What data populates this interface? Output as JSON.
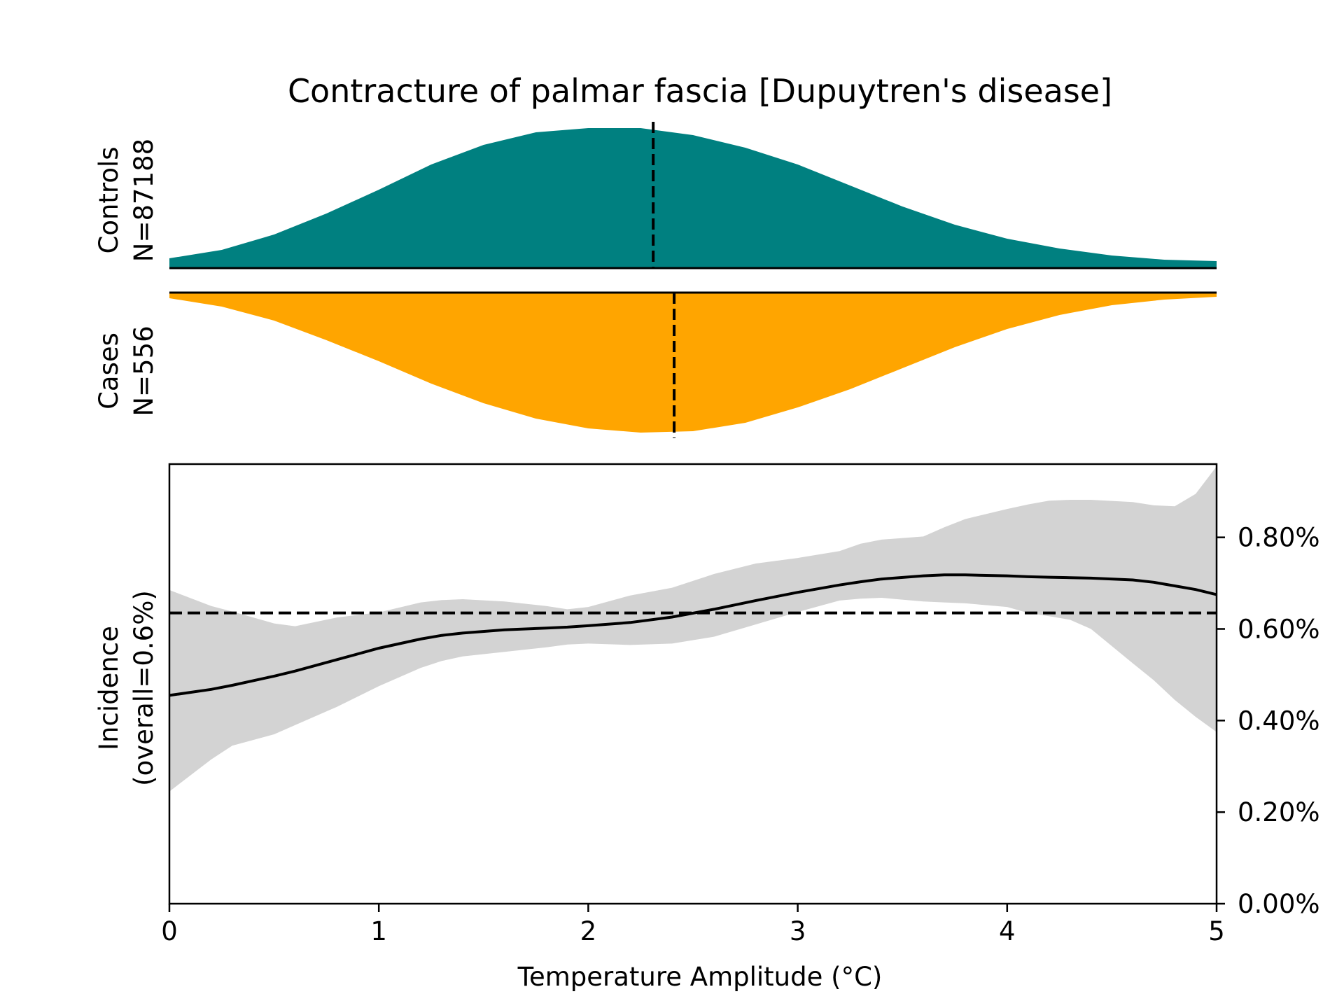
{
  "chart_data": {
    "type": "area",
    "title": "Contracture of palmar fascia [Dupuytren's disease]",
    "xlabel": "Temperature Amplitude (°C)",
    "xlim": [
      0,
      5
    ],
    "x_ticks": [
      "0",
      "1",
      "2",
      "3",
      "4",
      "5"
    ],
    "colors": {
      "controls": "#008080",
      "cases": "#FFA500",
      "ci_band": "#d3d3d3",
      "line": "#000000"
    },
    "controls": {
      "label_line1": "Controls",
      "label_line2": "N=87188",
      "median": 2.31,
      "density": [
        [
          0.0,
          0.07
        ],
        [
          0.25,
          0.13
        ],
        [
          0.5,
          0.24
        ],
        [
          0.75,
          0.39
        ],
        [
          1.0,
          0.56
        ],
        [
          1.25,
          0.74
        ],
        [
          1.5,
          0.88
        ],
        [
          1.75,
          0.97
        ],
        [
          2.0,
          1.0
        ],
        [
          2.25,
          1.0
        ],
        [
          2.5,
          0.95
        ],
        [
          2.75,
          0.86
        ],
        [
          3.0,
          0.74
        ],
        [
          3.25,
          0.59
        ],
        [
          3.5,
          0.44
        ],
        [
          3.75,
          0.31
        ],
        [
          4.0,
          0.21
        ],
        [
          4.25,
          0.14
        ],
        [
          4.5,
          0.09
        ],
        [
          4.75,
          0.06
        ],
        [
          5.0,
          0.05
        ]
      ]
    },
    "cases": {
      "label_line1": "Cases",
      "label_line2": "N=556",
      "median": 2.41,
      "density": [
        [
          0.0,
          0.04
        ],
        [
          0.25,
          0.1
        ],
        [
          0.5,
          0.2
        ],
        [
          0.75,
          0.34
        ],
        [
          1.0,
          0.49
        ],
        [
          1.25,
          0.65
        ],
        [
          1.5,
          0.79
        ],
        [
          1.75,
          0.9
        ],
        [
          2.0,
          0.97
        ],
        [
          2.25,
          1.0
        ],
        [
          2.5,
          0.99
        ],
        [
          2.75,
          0.93
        ],
        [
          3.0,
          0.82
        ],
        [
          3.25,
          0.69
        ],
        [
          3.5,
          0.54
        ],
        [
          3.75,
          0.39
        ],
        [
          4.0,
          0.26
        ],
        [
          4.25,
          0.16
        ],
        [
          4.5,
          0.09
        ],
        [
          4.75,
          0.05
        ],
        [
          5.0,
          0.03
        ]
      ]
    },
    "incidence": {
      "ylabel_line1": "Incidence",
      "ylabel_line2": "(overall=0.6%)",
      "ylim": [
        0,
        0.0096
      ],
      "y_ticks": [
        {
          "value": 0.0,
          "label": "0.00%"
        },
        {
          "value": 0.002,
          "label": "0.20%"
        },
        {
          "value": 0.004,
          "label": "0.40%"
        },
        {
          "value": 0.006,
          "label": "0.60%"
        },
        {
          "value": 0.008,
          "label": "0.80%"
        }
      ],
      "overall": 0.00635,
      "x": [
        0,
        0.2,
        0.3,
        0.5,
        0.6,
        0.8,
        1.0,
        1.2,
        1.3,
        1.4,
        1.6,
        1.8,
        1.9,
        2.0,
        2.2,
        2.4,
        2.6,
        2.8,
        3.0,
        3.2,
        3.3,
        3.4,
        3.6,
        3.7,
        3.8,
        4.0,
        4.1,
        4.2,
        4.3,
        4.4,
        4.6,
        4.7,
        4.8,
        4.9,
        5.0
      ],
      "mean": [
        0.00455,
        0.00468,
        0.00477,
        0.00497,
        0.00508,
        0.00533,
        0.00558,
        0.00578,
        0.00586,
        0.00591,
        0.00598,
        0.00602,
        0.00604,
        0.00607,
        0.00614,
        0.00626,
        0.00643,
        0.00662,
        0.0068,
        0.00696,
        0.00703,
        0.00709,
        0.00716,
        0.00718,
        0.00718,
        0.00716,
        0.00714,
        0.00713,
        0.00712,
        0.00711,
        0.00707,
        0.00702,
        0.00694,
        0.00686,
        0.00675
      ],
      "upper": [
        0.00685,
        0.0065,
        0.00638,
        0.00612,
        0.00606,
        0.00625,
        0.00636,
        0.00658,
        0.00663,
        0.00665,
        0.0066,
        0.0065,
        0.00643,
        0.00648,
        0.00673,
        0.0069,
        0.0072,
        0.00743,
        0.00755,
        0.0077,
        0.00786,
        0.00795,
        0.00802,
        0.00822,
        0.0084,
        0.00862,
        0.00872,
        0.0088,
        0.00882,
        0.00882,
        0.00877,
        0.0087,
        0.00868,
        0.00895,
        0.00955
      ],
      "lower": [
        0.00245,
        0.00315,
        0.00345,
        0.0037,
        0.0039,
        0.0043,
        0.00475,
        0.00515,
        0.0053,
        0.0054,
        0.0055,
        0.0056,
        0.00566,
        0.00568,
        0.00565,
        0.00568,
        0.00583,
        0.0061,
        0.00637,
        0.00662,
        0.00666,
        0.00668,
        0.0066,
        0.00658,
        0.00656,
        0.00648,
        0.00635,
        0.00628,
        0.0062,
        0.006,
        0.00525,
        0.00488,
        0.00445,
        0.00408,
        0.00375
      ]
    }
  }
}
